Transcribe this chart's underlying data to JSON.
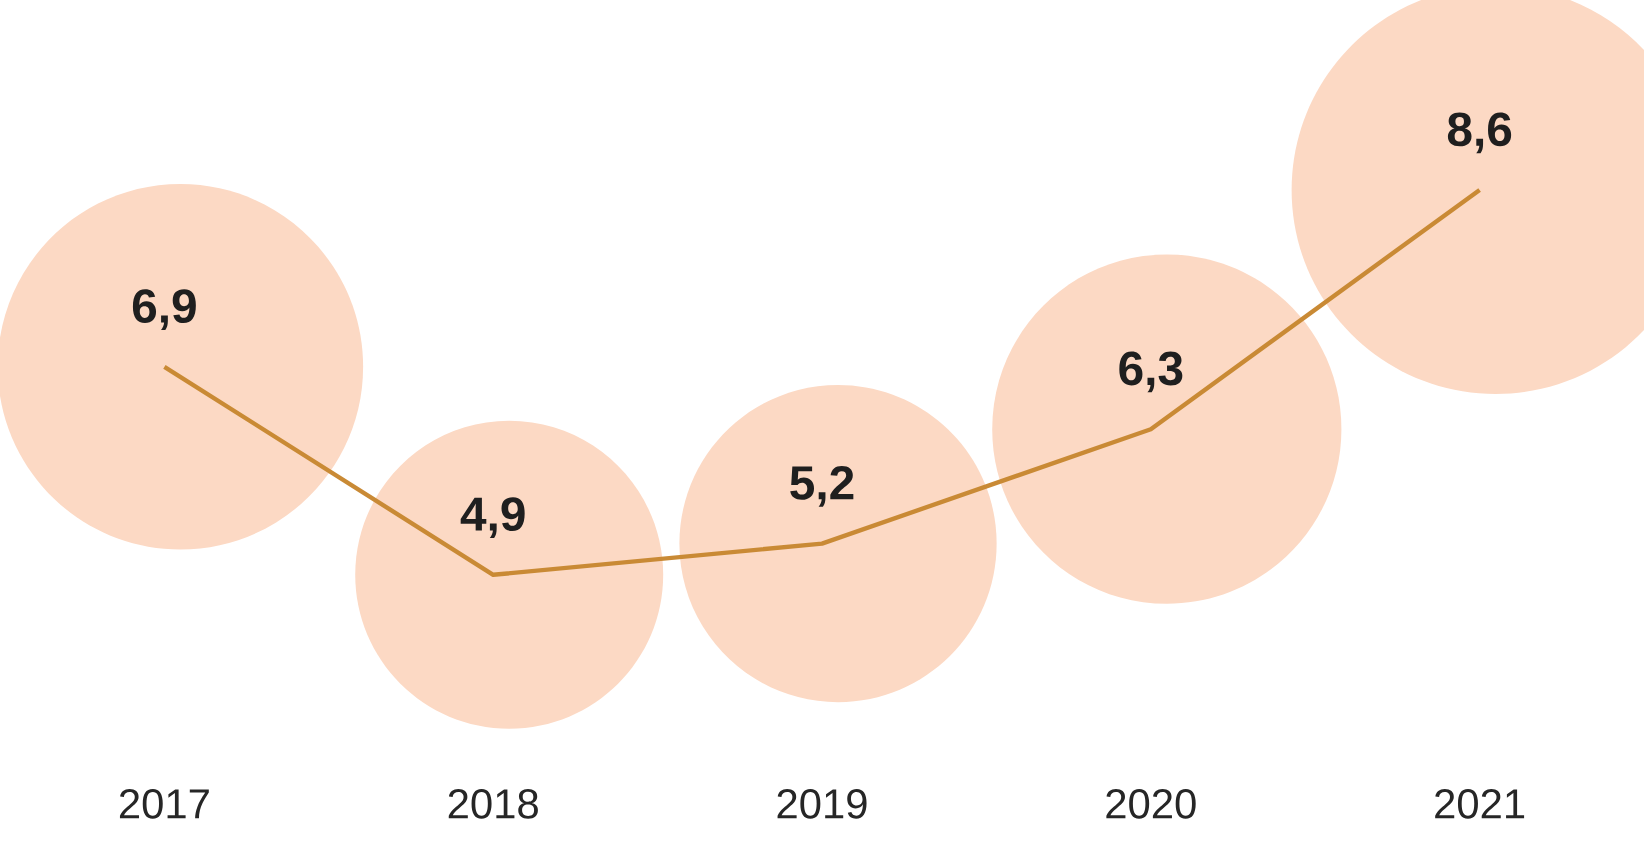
{
  "chart_data": {
    "type": "line",
    "categories": [
      "2017",
      "2018",
      "2019",
      "2020",
      "2021"
    ],
    "series": [
      {
        "color": "#c98a35",
        "values": [
          6.9,
          4.9,
          5.2,
          6.3,
          8.6
        ],
        "value_labels": [
          "6,9",
          "4,9",
          "5,2",
          "6,3",
          "8,6"
        ]
      }
    ]
  }
}
